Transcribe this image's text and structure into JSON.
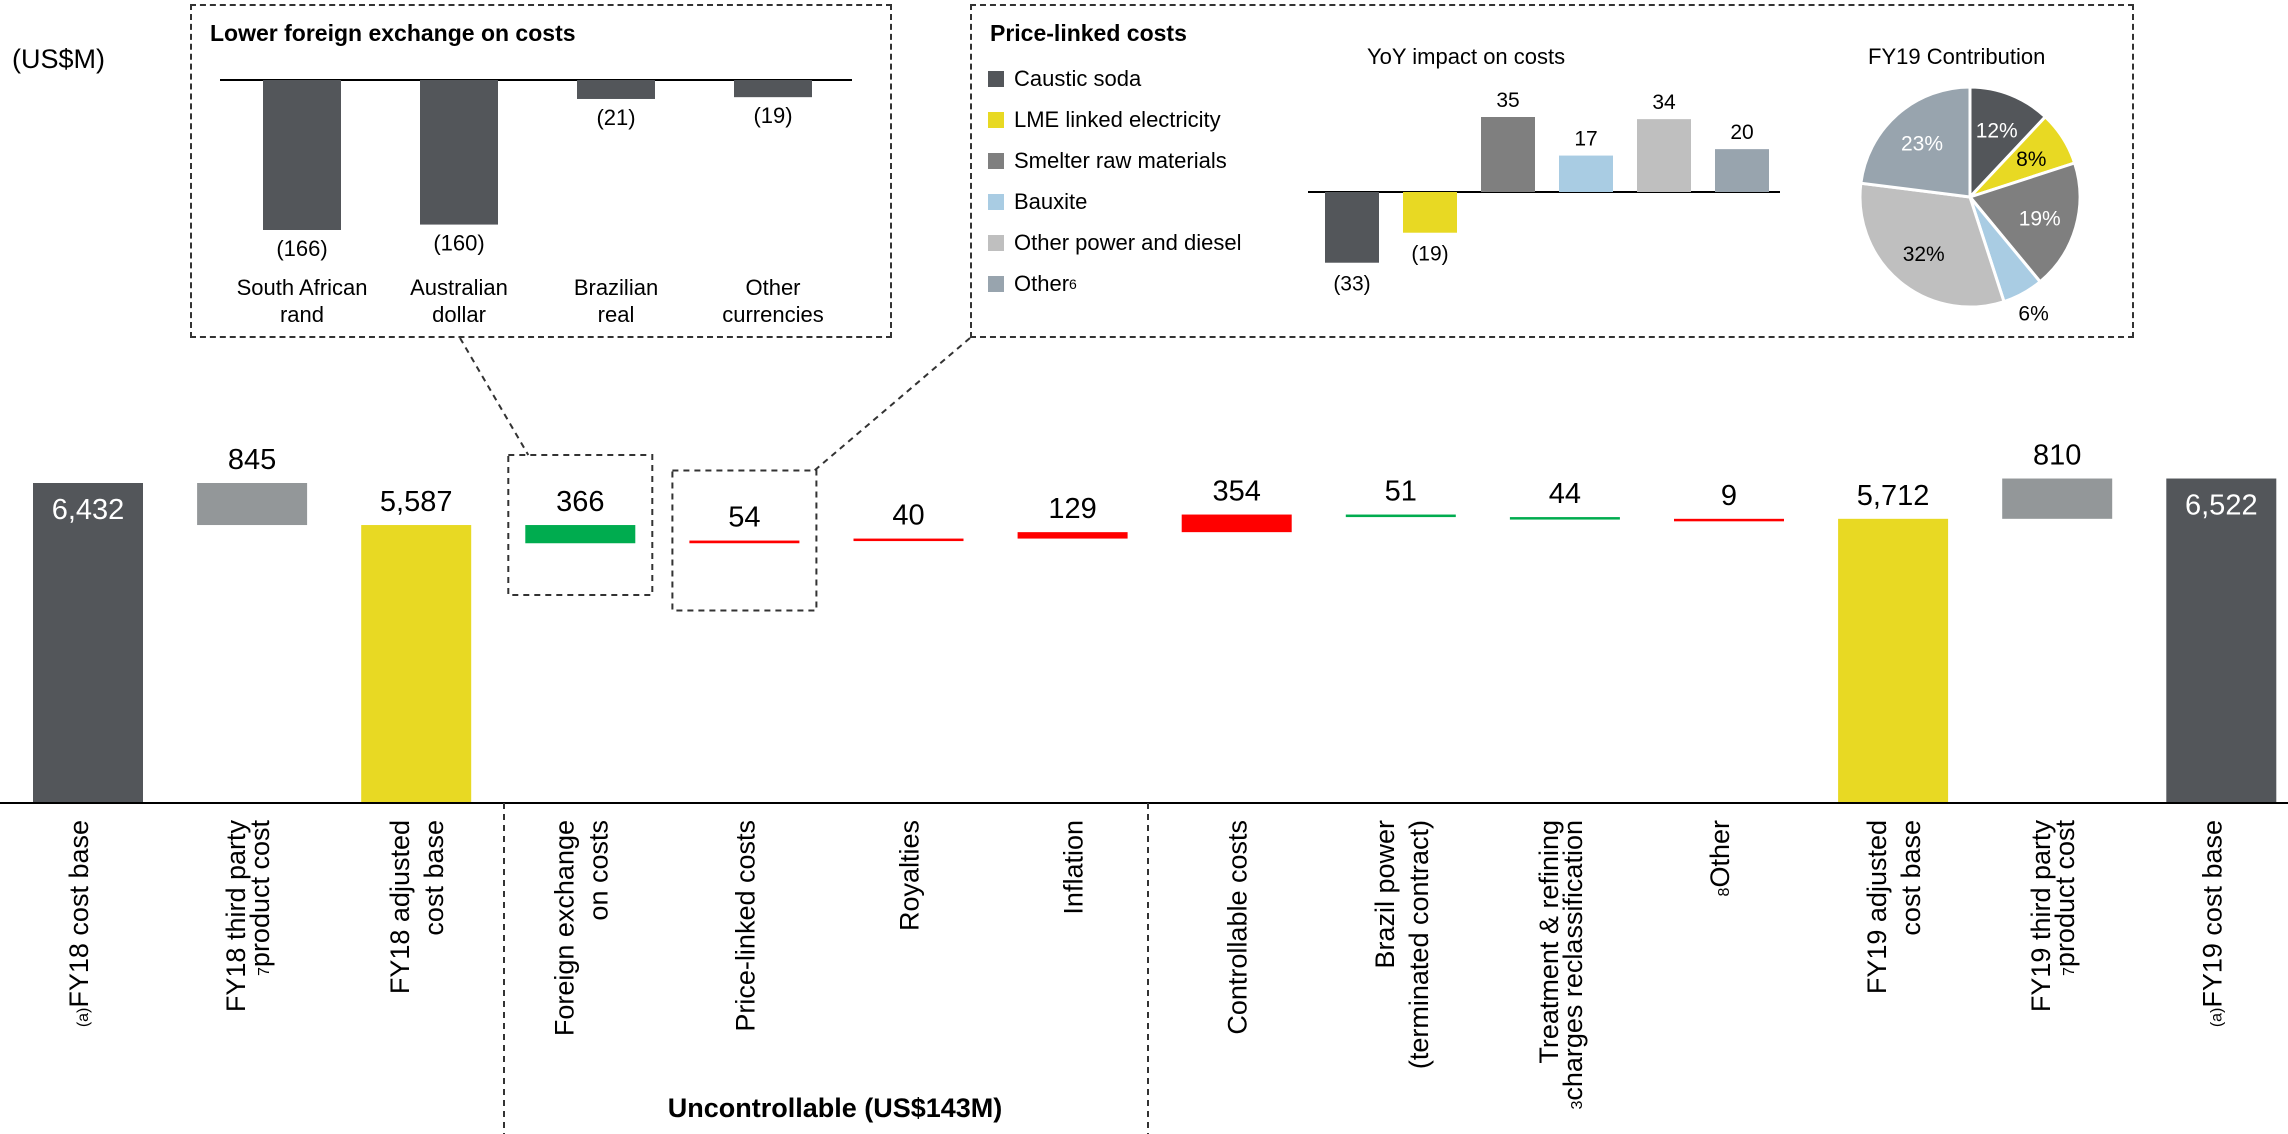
{
  "unit_label": "(US$M)",
  "group_label": "Uncontrollable (US$143M)",
  "colors": {
    "dark_grey": "#53565a",
    "mid_grey": "#939799",
    "yellow": "#e8d923",
    "green": "#00ac4f",
    "red": "#ff0000"
  },
  "chart_data": [
    {
      "type": "bar",
      "subtype": "waterfall",
      "categories": [
        "FY18 cost base",
        "FY18 third party product cost",
        "FY18 adjusted cost base",
        "Foreign exchange on costs",
        "Price-linked costs",
        "Royalties",
        "Inflation",
        "Controllable costs",
        "Brazil power (terminated contract)",
        "Treatment & refining charges reclassification",
        "Other",
        "FY19 adjusted cost base",
        "FY19 third party product cost",
        "FY19 cost base"
      ],
      "category_lines": [
        [
          "FY18 cost base"
        ],
        [
          "FY18 third party",
          "product cost"
        ],
        [
          "FY18 adjusted",
          "cost base"
        ],
        [
          "Foreign exchange",
          "on costs"
        ],
        [
          "Price-linked costs"
        ],
        [
          "Royalties"
        ],
        [
          "Inflation"
        ],
        [
          "Controllable costs"
        ],
        [
          "Brazil power",
          "(terminated contract)"
        ],
        [
          "Treatment & refining",
          "charges reclassification"
        ],
        [
          "Other"
        ],
        [
          "FY19 adjusted",
          "cost base"
        ],
        [
          "FY19 third party",
          "product cost"
        ],
        [
          "FY19 cost base"
        ]
      ],
      "category_superscripts": [
        "(a)",
        "7",
        "",
        "",
        "",
        "",
        "",
        "",
        "",
        "3",
        "8",
        "",
        "7",
        "(a)"
      ],
      "values": [
        6432,
        -845,
        5587,
        -366,
        54,
        40,
        129,
        354,
        -51,
        -44,
        9,
        5712,
        810,
        6522
      ],
      "labels": [
        "6,432",
        "845",
        "5,587",
        "366",
        "54",
        "40",
        "129",
        "354",
        "51",
        "44",
        "9",
        "5,712",
        "810",
        "6,522"
      ],
      "bar_roles": [
        "total",
        "decrease",
        "total",
        "decrease",
        "increase",
        "increase",
        "increase",
        "increase",
        "decrease",
        "decrease",
        "increase",
        "total",
        "increase",
        "total"
      ],
      "bar_colors": [
        "#53565a",
        "#939799",
        "#e8d923",
        "#00ac4f",
        "#ff0000",
        "#ff0000",
        "#ff0000",
        "#ff0000",
        "#00ac4f",
        "#00ac4f",
        "#ff0000",
        "#e8d923",
        "#939799",
        "#53565a"
      ]
    },
    {
      "type": "bar",
      "title": "Lower foreign exchange on costs",
      "categories": [
        "South African rand",
        "Australian dollar",
        "Brazilian real",
        "Other currencies"
      ],
      "category_lines": [
        [
          "South African",
          "rand"
        ],
        [
          "Australian",
          "dollar"
        ],
        [
          "Brazilian",
          "real"
        ],
        [
          "Other",
          "currencies"
        ]
      ],
      "values": [
        -166,
        -160,
        -21,
        -19
      ],
      "labels": [
        "(166)",
        "(160)",
        "(21)",
        "(19)"
      ],
      "color": "#53565a"
    },
    {
      "type": "bar",
      "title": "YoY impact on costs",
      "categories": [
        "Caustic soda",
        "LME linked electricity",
        "Smelter raw materials",
        "Bauxite",
        "Other power and diesel",
        "Other"
      ],
      "values": [
        -33,
        -19,
        35,
        17,
        34,
        20
      ],
      "labels": [
        "(33)",
        "(19)",
        "35",
        "17",
        "34",
        "20"
      ],
      "colors": [
        "#53565a",
        "#e8d923",
        "#7f7f7f",
        "#a9cce3",
        "#bfbfbf",
        "#98a4ae"
      ]
    },
    {
      "type": "pie",
      "title": "FY19 Contribution",
      "categories": [
        "Caustic soda",
        "LME linked electricity",
        "Smelter raw materials",
        "Bauxite",
        "Other power and diesel",
        "Other"
      ],
      "values": [
        12,
        8,
        19,
        6,
        32,
        23
      ],
      "labels": [
        "12%",
        "8%",
        "19%",
        "6%",
        "32%",
        "23%"
      ],
      "colors": [
        "#53565a",
        "#e8d923",
        "#7f7f7f",
        "#a9cce3",
        "#bfbfbf",
        "#98a4ae"
      ]
    }
  ],
  "price_linked": {
    "title": "Price-linked costs",
    "legend": [
      {
        "label": "Caustic soda",
        "color": "#53565a",
        "sup": ""
      },
      {
        "label": "LME linked electricity",
        "color": "#e8d923",
        "sup": ""
      },
      {
        "label": "Smelter raw materials",
        "color": "#7f7f7f",
        "sup": ""
      },
      {
        "label": "Bauxite",
        "color": "#a9cce3",
        "sup": ""
      },
      {
        "label": "Other power and diesel",
        "color": "#bfbfbf",
        "sup": ""
      },
      {
        "label": "Other",
        "color": "#98a4ae",
        "sup": "6"
      }
    ]
  }
}
